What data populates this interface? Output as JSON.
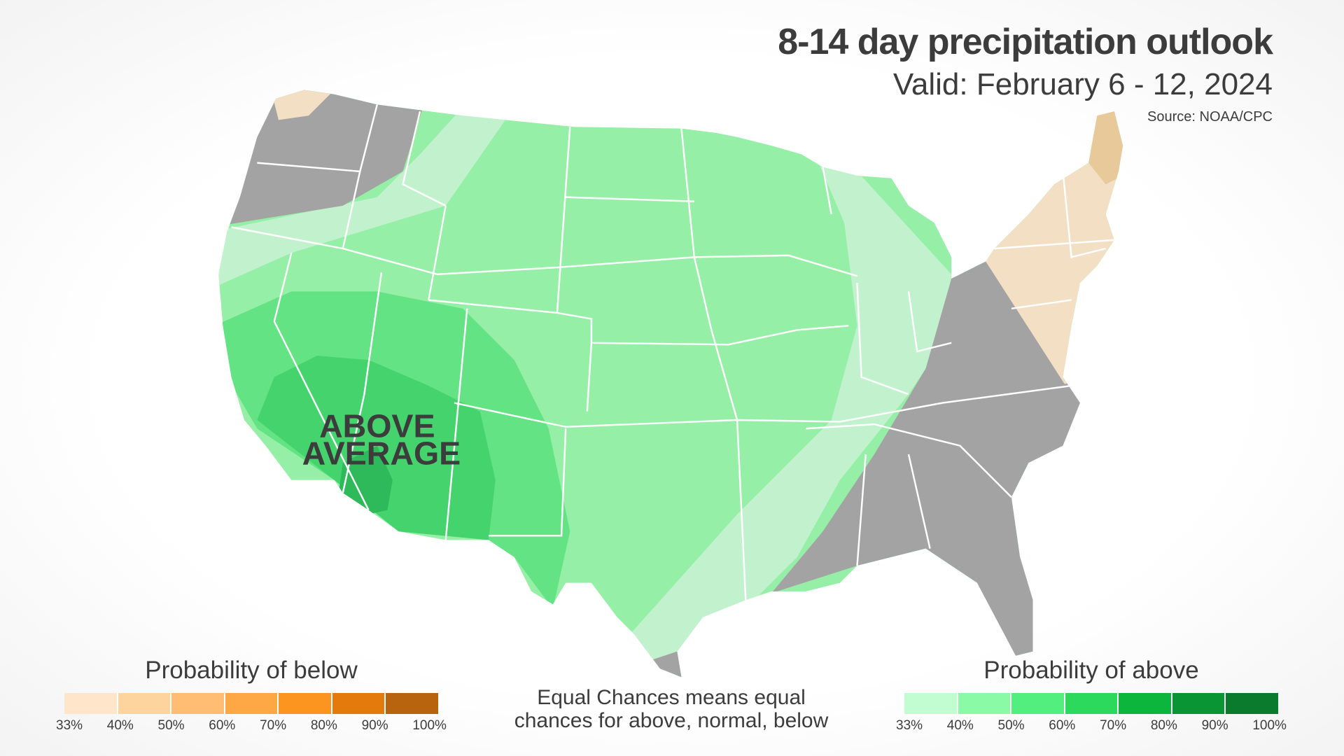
{
  "header": {
    "title": "8-14 day precipitation outlook",
    "subtitle": "Valid: February 6 - 12, 2024",
    "source": "Source: NOAA/CPC"
  },
  "map": {
    "label_line1": "ABOVE",
    "label_line2": "AVERAGE",
    "colors": {
      "equal_chances": "#a3a3a3",
      "above_33": "#c2f2cd",
      "above_40": "#95efa6",
      "above_50": "#63e383",
      "above_60": "#44d36c",
      "above_70": "#2eb95a",
      "below_33": "#f2dfc4",
      "below_40": "#e8c99a"
    }
  },
  "legend_below": {
    "title": "Probability of below",
    "colors": [
      "#ffe5c9",
      "#fed49e",
      "#febd72",
      "#fda845",
      "#fc951f",
      "#e37a0b",
      "#b8640f"
    ],
    "ticks": [
      "33%",
      "40%",
      "50%",
      "60%",
      "70%",
      "80%",
      "90%",
      "100%"
    ]
  },
  "legend_above": {
    "title": "Probability of above",
    "colors": [
      "#c1fdd0",
      "#8bfaa6",
      "#52ef7e",
      "#2cd95c",
      "#0cb63c",
      "#0a9534",
      "#0a7a2c"
    ],
    "ticks": [
      "33%",
      "40%",
      "50%",
      "60%",
      "70%",
      "80%",
      "90%",
      "100%"
    ]
  },
  "note": {
    "line1": "Equal Chances means equal",
    "line2": "chances for above, normal, below"
  }
}
